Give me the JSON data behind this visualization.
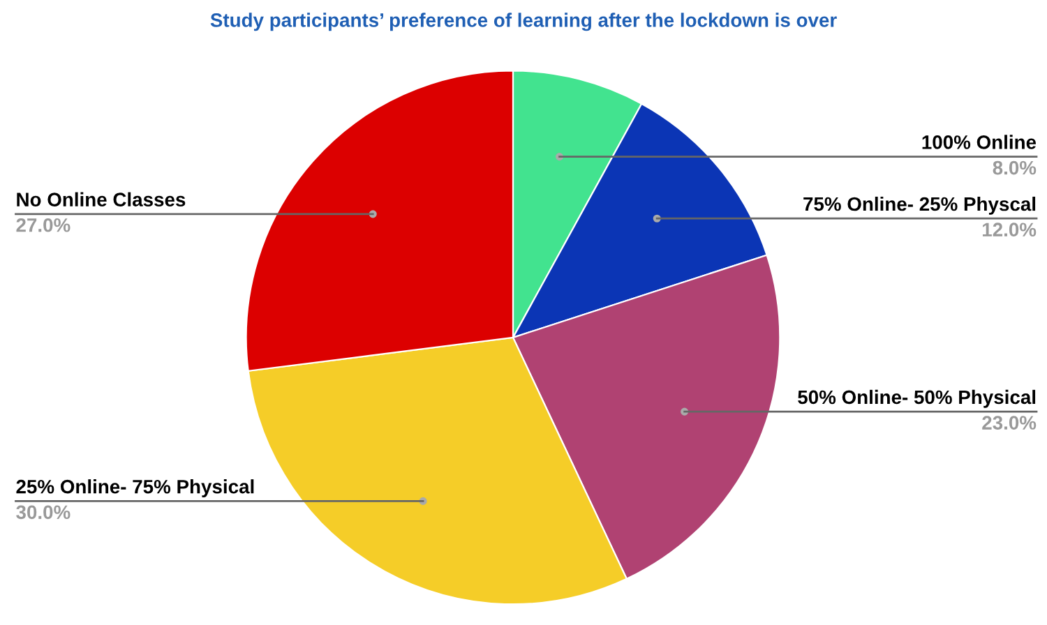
{
  "chart_data": {
    "type": "pie",
    "title": "Study participants’ preference of learning after the lockdown is over",
    "categories": [
      "100% Online",
      "75% Online- 25% Physcal",
      "50% Online- 50% Physical",
      "25% Online- 75% Physical",
      "No Online Classes"
    ],
    "values": [
      8,
      12,
      23,
      30,
      27
    ],
    "value_labels": [
      "8.0%",
      "12.0%",
      "23.0%",
      "30.0%",
      "27.0%"
    ],
    "colors": [
      "#42e38f",
      "#0b35b5",
      "#b04272",
      "#f5cd28",
      "#dc0000"
    ],
    "legend": false
  }
}
